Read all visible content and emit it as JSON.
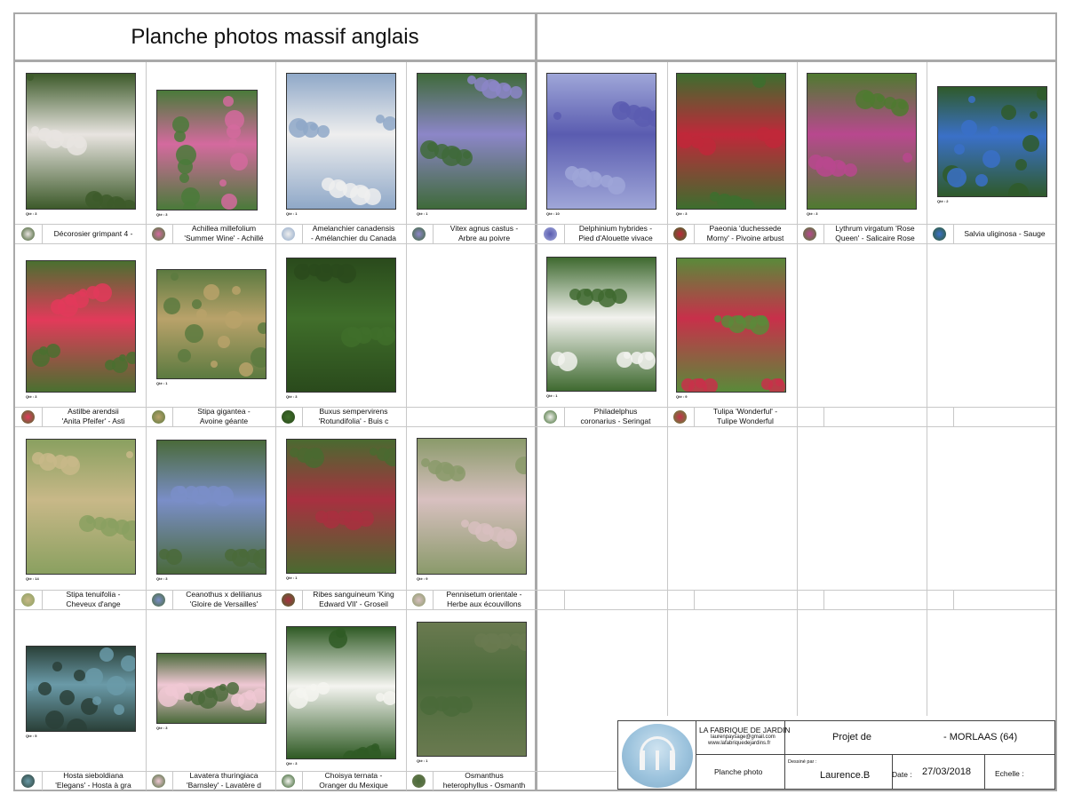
{
  "title": "Planche photos massif anglais",
  "plants": [
    {
      "name": "Décorosier grimpant 4 -",
      "qty": "Qté : 3",
      "c1": "#e8e4e0",
      "c2": "#3d5a2a"
    },
    {
      "name": "Achillea millefolium\n'Summer Wine' - Achillé",
      "qty": "Qté : 3",
      "c1": "#d46a9e",
      "c2": "#4a7a3a"
    },
    {
      "name": "Amelanchier canadensis\n- Amélanchier du Canada",
      "qty": "Qté : 1",
      "c1": "#eeeeee",
      "c2": "#8fa8c8"
    },
    {
      "name": "Vitex agnus castus -\nArbre au poivre",
      "qty": "Qté : 1",
      "c1": "#8c86c8",
      "c2": "#3f6a3a"
    },
    {
      "name": "Delphinium hybrides -\nPied d'Alouette vivace",
      "qty": "Qté : 10",
      "c1": "#5a5cb0",
      "c2": "#9fa6d8"
    },
    {
      "name": "Paeonia 'duchessede\nMorny' - Pivoine arbust",
      "qty": "Qté : 3",
      "c1": "#c0283a",
      "c2": "#3d6e2e"
    },
    {
      "name": "Lythrum virgatum 'Rose\nQueen' - Salicaire Rose",
      "qty": "Qté : 3",
      "c1": "#b8488e",
      "c2": "#4f7a30"
    },
    {
      "name": "Salvia uliginosa - Sauge",
      "qty": "Qté : 2",
      "c1": "#3a70c8",
      "c2": "#2f5a2a"
    },
    {
      "name": "Astilbe arendsii\n'Anita Pfeifer'  - Asti",
      "qty": "Qté : 3",
      "c1": "#e23a5a",
      "c2": "#4a7030"
    },
    {
      "name": "Stipa gigantea -\nAvoine géante",
      "qty": "Qté : 1",
      "c1": "#b9a26a",
      "c2": "#5c7a40"
    },
    {
      "name": "Buxus sempervirens\n'Rotundifolia' - Buis c",
      "qty": "Qté : 3",
      "c1": "#3f6e2a",
      "c2": "#2a4a1c"
    },
    {
      "name": "Philadelphus\ncoronarius - Seringat",
      "qty": "Qté : 1",
      "c1": "#f2f2ee",
      "c2": "#3f6a30"
    },
    {
      "name": "Tulipa 'Wonderful' -\nTulipe Wonderful",
      "qty": "Qté : 9",
      "c1": "#c8304a",
      "c2": "#5a8a3a"
    },
    {
      "name": "Stipa tenuifolia -\nCheveux d'ange",
      "qty": "Qté : 14",
      "c1": "#c8b888",
      "c2": "#8aa060"
    },
    {
      "name": "Ceanothus x delilianus\n'Gloire de Versailles'",
      "qty": "Qté : 3",
      "c1": "#7a8ec8",
      "c2": "#4a6a3a"
    },
    {
      "name": "Ribes sanguineum 'King\nEdward VII' - Groseil",
      "qty": "Qté : 1",
      "c1": "#a83040",
      "c2": "#4a6a30"
    },
    {
      "name": "Pennisetum orientale -\nHerbe aux écouvillons",
      "qty": "Qté : 9",
      "c1": "#d8c0c0",
      "c2": "#8a9a6a"
    },
    {
      "name": "Hosta sieboldiana\n'Elegans' - Hosta à gra",
      "qty": "Qté : 5",
      "c1": "#6a9aa8",
      "c2": "#2a4038"
    },
    {
      "name": "Lavatera thuringiaca\n'Barnsley' - Lavatère d",
      "qty": "Qté : 3",
      "c1": "#f0c8d4",
      "c2": "#4a6a3a"
    },
    {
      "name": "Choisya ternata -\nOranger du Mexique",
      "qty": "Qté : 3",
      "c1": "#f4f4f0",
      "c2": "#2f5a24"
    },
    {
      "name": "Osmanthus\nheterophyllus - Osmanth",
      "qty": "Qté : 1",
      "c1": "#4a6a3a",
      "c2": "#6a7a50"
    }
  ],
  "cartouche": {
    "company": "LA FABRIQUE DE JARDIN",
    "email": "laurenpaysage@gmail.com",
    "website": "www.lafabriquedejardins.fr",
    "projet_label": "Projet de",
    "projet_value": "- MORLAAS (64)",
    "planche": "Planche photo",
    "dessine_label": "Dessiné par :",
    "dessine_value": "Laurence.B",
    "date_label": "Date :",
    "date_value": "27/03/2018",
    "echelle_label": "Echelle :"
  }
}
